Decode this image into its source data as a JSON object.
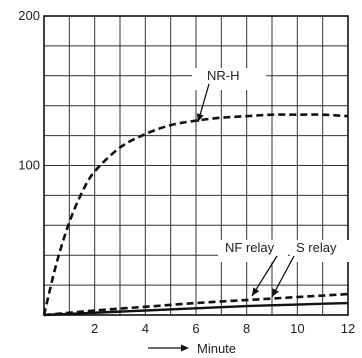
{
  "chart_data": {
    "type": "line",
    "xlabel": "Minute",
    "x_ticks": [
      "2",
      "4",
      "6",
      "8",
      "10",
      "12"
    ],
    "y_ticks": [
      "200",
      "100"
    ],
    "xlim": [
      0,
      12
    ],
    "ylim": [
      0,
      200
    ],
    "grid": true,
    "series": [
      {
        "name": "NR-H",
        "style": "dashed",
        "x": [
          0,
          0.5,
          1,
          1.5,
          2,
          3,
          4,
          5,
          6,
          7,
          8,
          9,
          10,
          11,
          12
        ],
        "y": [
          0,
          35,
          62,
          82,
          96,
          112,
          121,
          127,
          130,
          132,
          133,
          134,
          134,
          134,
          133
        ]
      },
      {
        "name": "NF relay",
        "style": "dashed",
        "x": [
          0,
          2,
          4,
          6,
          8,
          10,
          12
        ],
        "y": [
          0,
          3,
          5.5,
          8,
          10,
          12,
          14
        ]
      },
      {
        "name": "S relay",
        "style": "solid",
        "x": [
          0,
          2,
          4,
          6,
          8,
          10,
          12
        ],
        "y": [
          0,
          1.5,
          3,
          4.5,
          6,
          7,
          8
        ]
      }
    ],
    "annotations": [
      {
        "text": "NR-H",
        "target_series": 0
      },
      {
        "text": "NF relay",
        "target_series": 1
      },
      {
        "text": "S relay",
        "target_series": 2
      }
    ]
  }
}
